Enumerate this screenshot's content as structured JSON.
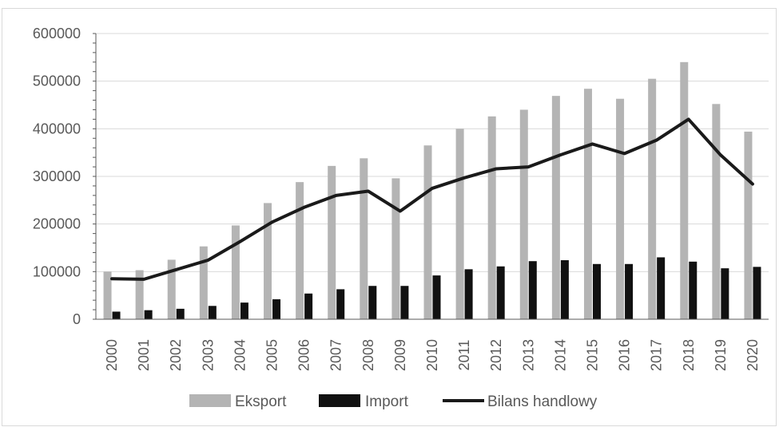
{
  "chart_data": {
    "type": "bar",
    "categories": [
      "2000",
      "2001",
      "2002",
      "2003",
      "2004",
      "2005",
      "2006",
      "2007",
      "2008",
      "2009",
      "2010",
      "2011",
      "2012",
      "2013",
      "2014",
      "2015",
      "2016",
      "2017",
      "2018",
      "2019",
      "2020"
    ],
    "series": [
      {
        "name": "Eksport",
        "kind": "bar",
        "color": "#b4b4b4",
        "values": [
          100000,
          103000,
          125000,
          153000,
          197000,
          244000,
          288000,
          322000,
          338000,
          296000,
          365000,
          400000,
          426000,
          440000,
          469000,
          484000,
          463000,
          505000,
          540000,
          452000,
          394000
        ]
      },
      {
        "name": "Import",
        "kind": "bar",
        "color": "#111111",
        "values": [
          16000,
          19000,
          22000,
          28000,
          35000,
          42000,
          54000,
          63000,
          70000,
          70000,
          92000,
          105000,
          111000,
          122000,
          124000,
          116000,
          116000,
          130000,
          121000,
          107000,
          110000
        ]
      },
      {
        "name": "Bilans handlowy",
        "kind": "line",
        "color": "#1a1a1a",
        "values": [
          85000,
          84000,
          104000,
          124000,
          163000,
          204000,
          235000,
          260000,
          269000,
          227000,
          275000,
          297000,
          316000,
          320000,
          345000,
          368000,
          348000,
          376000,
          420000,
          345000,
          284000
        ]
      }
    ],
    "yticks": [
      0,
      100000,
      200000,
      300000,
      400000,
      500000,
      600000
    ],
    "ylim": [
      0,
      600000
    ],
    "grid": true,
    "legend_position": "bottom"
  }
}
